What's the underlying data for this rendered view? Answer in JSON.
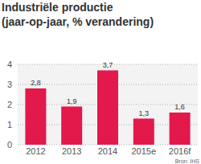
{
  "chart_data": {
    "type": "bar",
    "title": "Industriële productie",
    "subtitle": "(jaar-op-jaar, % verandering)",
    "source": "Bron: IHS",
    "categories": [
      "2012",
      "2013",
      "2014",
      "2015e",
      "2016f"
    ],
    "values": [
      2.8,
      1.9,
      3.7,
      1.3,
      1.6
    ],
    "value_labels": [
      "2,8",
      "1,9",
      "3,7",
      "1,3",
      "1,6"
    ],
    "color": "#e3194b",
    "ylim": [
      0,
      4
    ],
    "yticks": [
      0,
      1,
      2,
      3,
      4
    ],
    "grid": true,
    "data_labels": true
  }
}
